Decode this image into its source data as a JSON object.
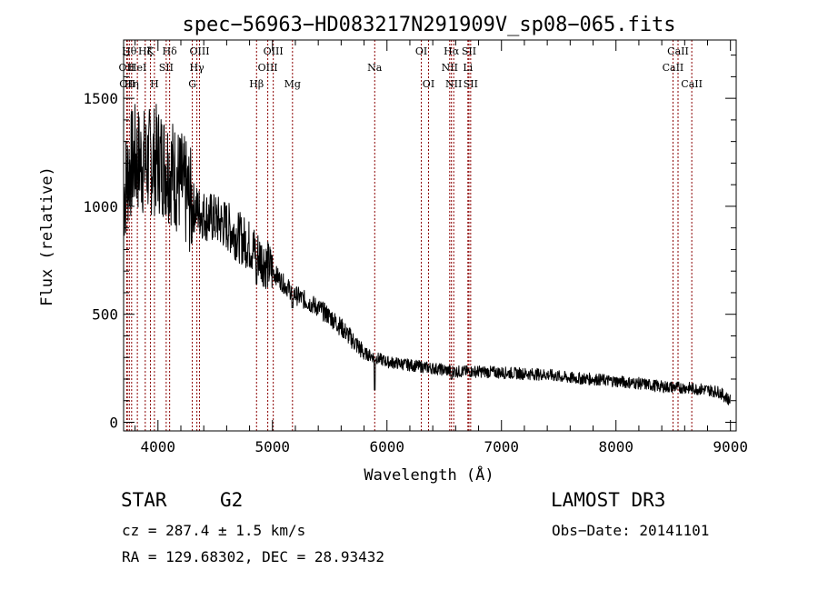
{
  "chart_data": {
    "type": "line",
    "title": "spec−56963−HD083217N291909V_sp08−065.fits",
    "xlabel": "Wavelength (Å)",
    "ylabel": "Flux (relative)",
    "xlim": [
      3700,
      9050
    ],
    "ylim": [
      -40,
      1770
    ],
    "xticks": [
      4000,
      5000,
      6000,
      7000,
      8000,
      9000
    ],
    "xtick_labels": [
      "4000",
      "5000",
      "6000",
      "7000",
      "8000",
      "9000"
    ],
    "yticks": [
      0,
      500,
      1000,
      1500
    ],
    "ytick_labels": [
      "0",
      "500",
      "1000",
      "1500"
    ],
    "grid": false,
    "line_color": "#8b0000",
    "spectrum_color": "#000000",
    "continuum": {
      "x": [
        3700,
        3750,
        3800,
        3900,
        4000,
        4100,
        4200,
        4300,
        4400,
        4500,
        4600,
        4700,
        4800,
        4900,
        5000,
        5100,
        5200,
        5300,
        5400,
        5500,
        5600,
        5700,
        5800,
        5900,
        6000,
        6200,
        6400,
        6600,
        6800,
        7000,
        7200,
        7400,
        7600,
        7800,
        8000,
        8200,
        8400,
        8600,
        8800,
        8900,
        9000
      ],
      "y": [
        1050,
        1180,
        1220,
        1200,
        1220,
        1180,
        1100,
        1000,
        960,
        940,
        910,
        860,
        820,
        760,
        700,
        640,
        590,
        560,
        530,
        490,
        440,
        380,
        320,
        300,
        280,
        265,
        250,
        235,
        235,
        230,
        225,
        220,
        205,
        200,
        190,
        180,
        165,
        160,
        150,
        140,
        100
      ]
    },
    "features": [
      {
        "x": 4861,
        "y": 640
      },
      {
        "x": 5175,
        "y": 530
      },
      {
        "x": 5893,
        "y": 150
      },
      {
        "x": 6563,
        "y": 200
      },
      {
        "x": 8600,
        "y": 190
      }
    ],
    "lines": [
      {
        "wavelength": 3727,
        "label": "OII",
        "row": 2
      },
      {
        "wavelength": 3733,
        "label": "OII",
        "row": 3
      },
      {
        "wavelength": 3750,
        "label": "Hθ",
        "row": 1
      },
      {
        "wavelength": 3770,
        "label": "Hη",
        "row": 3
      },
      {
        "wavelength": 3820,
        "label": "HeI",
        "row": 2
      },
      {
        "wavelength": 3889,
        "label": "Hζ",
        "row": 1
      },
      {
        "wavelength": 3934,
        "label": "K",
        "row": 1
      },
      {
        "wavelength": 3969,
        "label": "H",
        "row": 3
      },
      {
        "wavelength": 4072,
        "label": "SII",
        "row": 2
      },
      {
        "wavelength": 4102,
        "label": "Hδ",
        "row": 1
      },
      {
        "wavelength": 4300,
        "label": "G",
        "row": 3
      },
      {
        "wavelength": 4340,
        "label": "Hγ",
        "row": 2
      },
      {
        "wavelength": 4363,
        "label": "OIII",
        "row": 1
      },
      {
        "wavelength": 4861,
        "label": "Hβ",
        "row": 3
      },
      {
        "wavelength": 4959,
        "label": "OIII",
        "row": 2
      },
      {
        "wavelength": 5007,
        "label": "OIII",
        "row": 1
      },
      {
        "wavelength": 5175,
        "label": "Mg",
        "row": 3
      },
      {
        "wavelength": 5893,
        "label": "Na",
        "row": 2
      },
      {
        "wavelength": 6300,
        "label": "OI",
        "row": 1
      },
      {
        "wavelength": 6363,
        "label": "OI",
        "row": 3
      },
      {
        "wavelength": 6548,
        "label": "NII",
        "row": 2
      },
      {
        "wavelength": 6563,
        "label": "Hα",
        "row": 1
      },
      {
        "wavelength": 6583,
        "label": "NII",
        "row": 3
      },
      {
        "wavelength": 6707,
        "label": "Li",
        "row": 2
      },
      {
        "wavelength": 6716,
        "label": "SII",
        "row": 1
      },
      {
        "wavelength": 6731,
        "label": "SII",
        "row": 3
      },
      {
        "wavelength": 8498,
        "label": "CaII",
        "row": 2
      },
      {
        "wavelength": 8542,
        "label": "CaII",
        "row": 1
      },
      {
        "wavelength": 8662,
        "label": "CaII",
        "row": 3
      }
    ]
  },
  "info": {
    "object_class": "STAR",
    "subclass": "G2",
    "survey": "LAMOST DR3",
    "redshift": "cz = 287.4 ± 1.5 km/s",
    "obs_date": "Obs−Date: 20141101",
    "coords": "RA = 129.68302, DEC =  28.93432"
  }
}
